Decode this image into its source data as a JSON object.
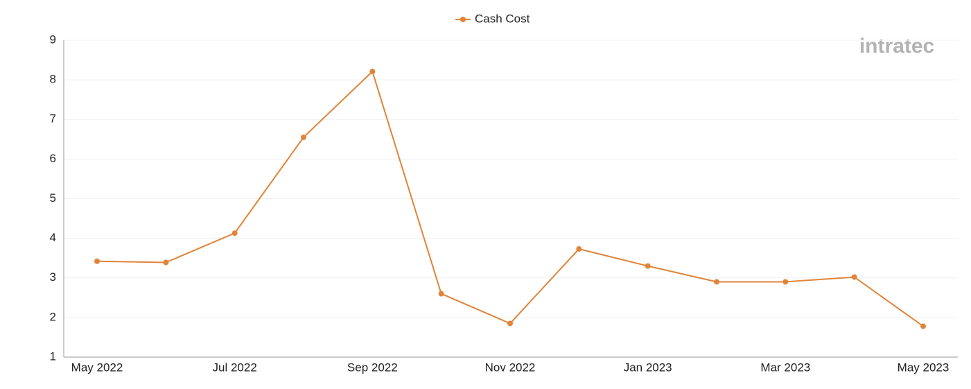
{
  "chart_data": {
    "type": "line",
    "legend_position": "top",
    "watermark": "intratec",
    "categories": [
      "May 2022",
      null,
      "Jul 2022",
      null,
      "Sep 2022",
      null,
      "Nov 2022",
      null,
      "Jan 2023",
      null,
      "Mar 2023",
      null,
      "May 2023"
    ],
    "series": [
      {
        "name": "Cash Cost",
        "color": "#e0843a",
        "values": [
          3.42,
          3.39,
          4.13,
          6.55,
          8.21,
          2.6,
          1.85,
          3.73,
          3.3,
          2.9,
          2.9,
          3.02,
          1.78
        ]
      }
    ],
    "ylim": [
      1,
      9
    ],
    "yticks": [
      1,
      2,
      3,
      4,
      5,
      6,
      7,
      8,
      9
    ],
    "grid": true
  }
}
